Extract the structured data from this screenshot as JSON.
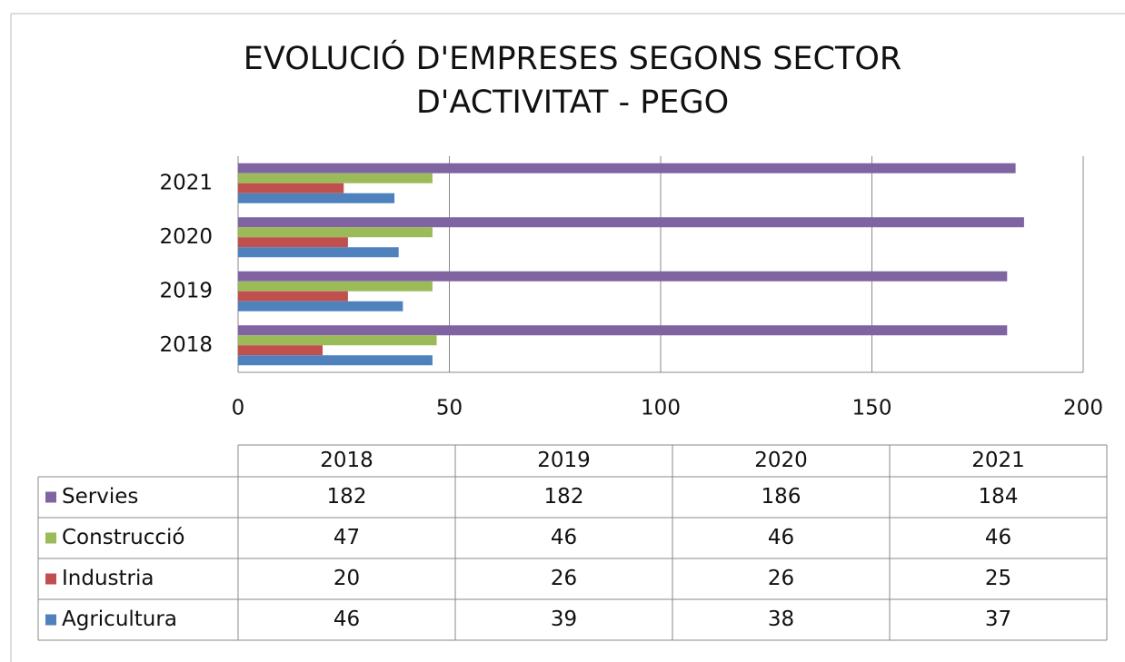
{
  "chart_data": {
    "type": "barh",
    "title": [
      "EVOLUCIÓ D'EMPRESES SEGONS SECTOR",
      "D'ACTIVITAT - PEGO"
    ],
    "categories": [
      "2018",
      "2019",
      "2020",
      "2021"
    ],
    "series": [
      {
        "name": "Servies",
        "color": "#8064a2",
        "values": [
          182,
          182,
          186,
          184
        ]
      },
      {
        "name": "Construcció",
        "color": "#9bbb59",
        "values": [
          47,
          46,
          46,
          46
        ]
      },
      {
        "name": "Industria",
        "color": "#c0504d",
        "values": [
          20,
          26,
          26,
          25
        ]
      },
      {
        "name": "Agricultura",
        "color": "#4f81bd",
        "values": [
          46,
          39,
          38,
          37
        ]
      }
    ],
    "xlim": [
      0,
      200
    ],
    "xticks": [
      0,
      50,
      100,
      150,
      200
    ],
    "grid": true,
    "data_table": true
  }
}
